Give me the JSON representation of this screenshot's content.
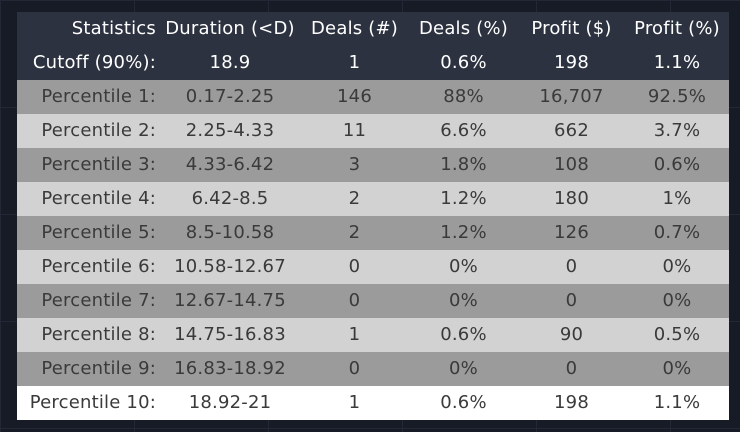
{
  "table": {
    "headers": [
      "Statistics",
      "Duration (<D)",
      "Deals (#)",
      "Deals (%)",
      "Profit ($)",
      "Profit (%)"
    ],
    "cutoff": [
      "Cutoff (90%):",
      "18.9",
      "1",
      "0.6%",
      "198",
      "1.1%"
    ],
    "rows": [
      [
        "Percentile 1:",
        "0.17-2.25",
        "146",
        "88%",
        "16,707",
        "92.5%"
      ],
      [
        "Percentile 2:",
        "2.25-4.33",
        "11",
        "6.6%",
        "662",
        "3.7%"
      ],
      [
        "Percentile 3:",
        "4.33-6.42",
        "3",
        "1.8%",
        "108",
        "0.6%"
      ],
      [
        "Percentile 4:",
        "6.42-8.5",
        "2",
        "1.2%",
        "180",
        "1%"
      ],
      [
        "Percentile 5:",
        "8.5-10.58",
        "2",
        "1.2%",
        "126",
        "0.7%"
      ],
      [
        "Percentile 6:",
        "10.58-12.67",
        "0",
        "0%",
        "0",
        "0%"
      ],
      [
        "Percentile 7:",
        "12.67-14.75",
        "0",
        "0%",
        "0",
        "0%"
      ],
      [
        "Percentile 8:",
        "14.75-16.83",
        "1",
        "0.6%",
        "90",
        "0.5%"
      ],
      [
        "Percentile 9:",
        "16.83-18.92",
        "0",
        "0%",
        "0",
        "0%"
      ],
      [
        "Percentile 10:",
        "18.92-21",
        "1",
        "0.6%",
        "198",
        "1.1%"
      ]
    ]
  },
  "colors": {
    "background": "#161b26",
    "header_bg": "#2d3240",
    "row_dark": "#9b9b9b",
    "row_light": "#d2d2d2",
    "row_white": "#ffffff",
    "row_text": "#3a3a3a",
    "header_text": "#ffffff"
  }
}
